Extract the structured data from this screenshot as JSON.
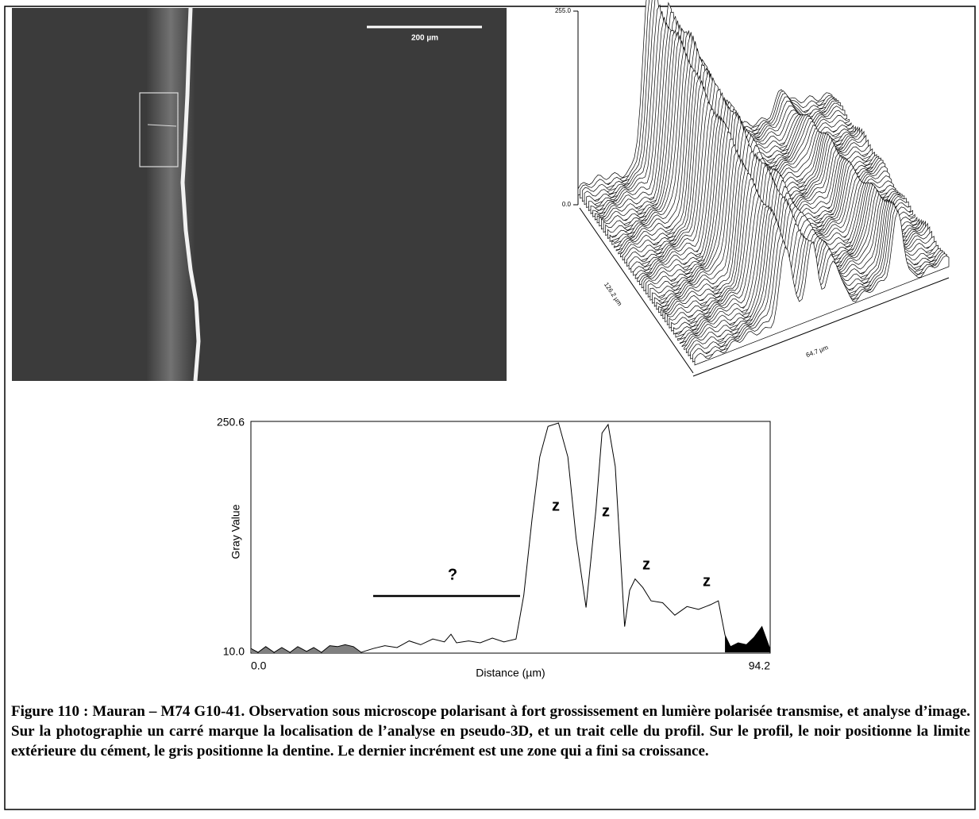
{
  "photo": {
    "scale_bar": "200 µm"
  },
  "surface_plot": {
    "z_max": "255.0",
    "z_min": "0.0",
    "depth_extent": "126.2 µm",
    "width_extent": "64.7 µm"
  },
  "chart_data": {
    "type": "line",
    "x_label": "Distance (µm)",
    "y_label": "Gray Value",
    "color": "#000000",
    "xlim": [
      0,
      94.2
    ],
    "ylim": [
      10,
      250.6
    ],
    "xticks": [
      {
        "value": 0,
        "label": "0.0"
      },
      94.2
    ],
    "yticks": [
      250.6,
      {
        "value": 10,
        "label": "10.0"
      }
    ],
    "x": [
      0,
      1.3,
      2.7,
      4.2,
      5.6,
      7.1,
      8.5,
      10.1,
      11.4,
      12.8,
      14.3,
      15.7,
      17.1,
      18.6,
      20.0,
      22.2,
      24.3,
      26.5,
      28.7,
      30.8,
      33.0,
      35.1,
      36.3,
      37.3,
      39.5,
      41.6,
      43.8,
      45.9,
      48.1,
      49.5,
      51.0,
      52.4,
      53.9,
      55.8,
      57.5,
      59.0,
      60.8,
      62.6,
      63.7,
      64.8,
      66.1,
      67.8,
      68.7,
      69.7,
      71.1,
      72.6,
      74.7,
      76.9,
      79.1,
      81.2,
      83.4,
      84.8,
      86.0,
      87.0,
      88.4,
      89.9,
      91.3,
      92.7,
      94.2
    ],
    "values": [
      14,
      10,
      16,
      10,
      15,
      10,
      16,
      11,
      15,
      10,
      17,
      16,
      18,
      16,
      10,
      14,
      17,
      15,
      22,
      18,
      24,
      21,
      29,
      20,
      22,
      20,
      25,
      21,
      24,
      70,
      150,
      215,
      247,
      250.6,
      215,
      130,
      57,
      160,
      240,
      249,
      205,
      37,
      75,
      87,
      78,
      64,
      62,
      49,
      58,
      55,
      60,
      64,
      28,
      16,
      20,
      18,
      26,
      37,
      13
    ],
    "shaded_regions": [
      {
        "x": [
          0,
          20
        ],
        "color": "#808080"
      },
      {
        "x": [
          86,
          94.2
        ],
        "color": "#000000"
      }
    ],
    "annotations": [
      "?",
      "z",
      "z",
      "z",
      "z"
    ]
  },
  "caption": "Figure 110 : Mauran – M74 G10-41. Observation sous microscope polarisant à fort grossissement en lumière polarisée transmise, et analyse d’image. Sur la photographie un carré marque la localisation de l’analyse en pseudo-3D, et un trait celle du profil. Sur le profil, le noir positionne la limite extérieure du cément, le gris positionne la dentine. Le dernier incrément est une zone qui a fini sa croissance."
}
